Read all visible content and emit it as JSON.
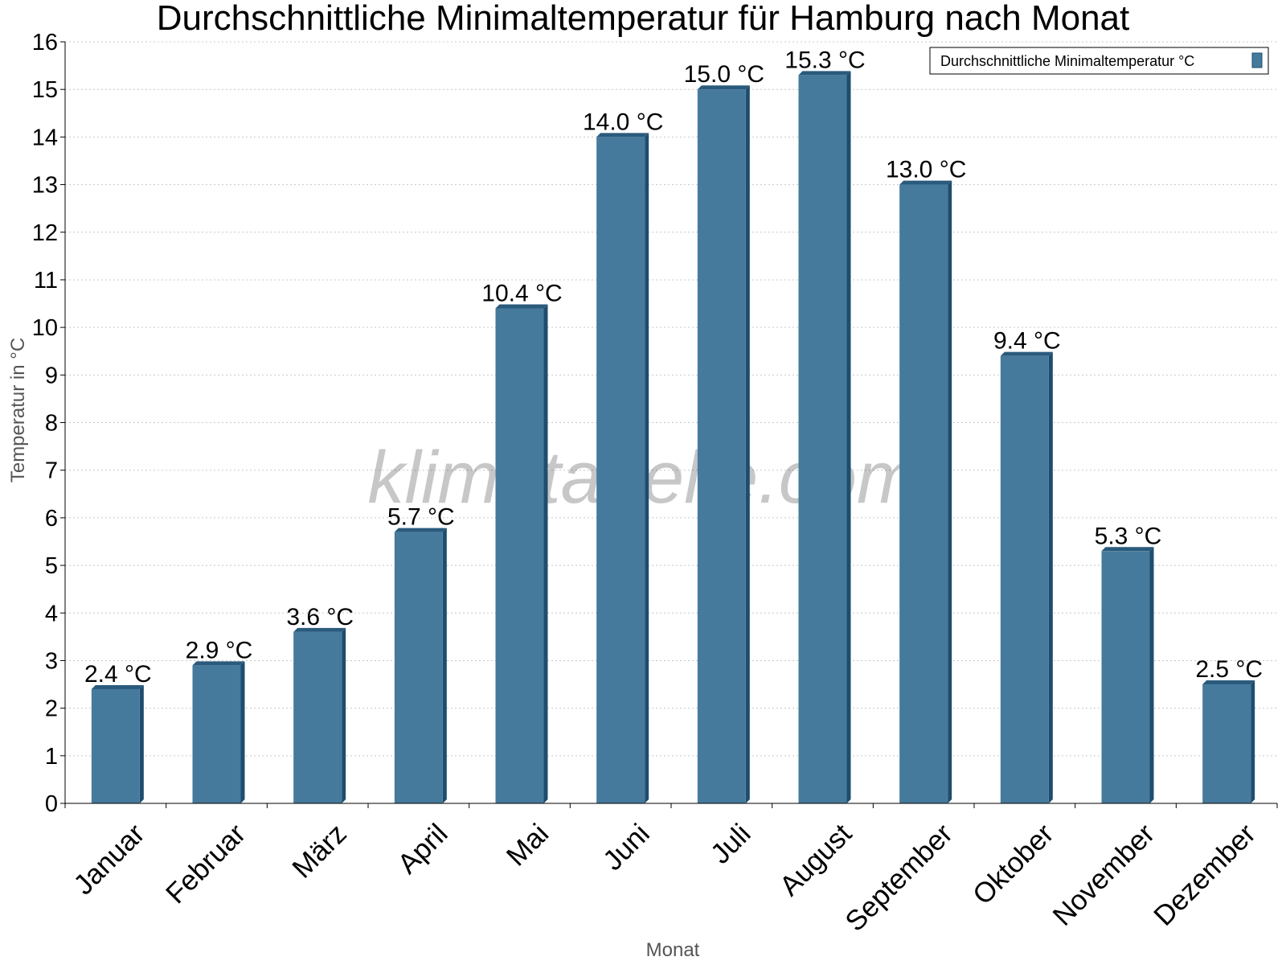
{
  "chart_data": {
    "type": "bar",
    "title": "Durchschnittliche Minimaltemperatur für Hamburg nach Monat",
    "xlabel": "Monat",
    "ylabel": "Temperatur in °C",
    "categories": [
      "Januar",
      "Februar",
      "März",
      "April",
      "Mai",
      "Juni",
      "Juli",
      "August",
      "September",
      "Oktober",
      "November",
      "Dezember"
    ],
    "series": [
      {
        "name": "Durchschnittliche Minimaltemperatur °C",
        "values": [
          2.4,
          2.9,
          3.6,
          5.7,
          10.4,
          14.0,
          15.0,
          15.3,
          13.0,
          9.4,
          5.3,
          2.5
        ],
        "labels": [
          "2.4 °C",
          "2.9 °C",
          "3.6 °C",
          "5.7 °C",
          "10.4 °C",
          "14.0 °C",
          "15.0 °C",
          "15.3 °C",
          "13.0 °C",
          "9.4 °C",
          "5.3 °C",
          "2.5 °C"
        ]
      }
    ],
    "ylim": [
      0,
      16
    ],
    "yticks": [
      "0",
      "1",
      "2",
      "3",
      "4",
      "5",
      "6",
      "7",
      "8",
      "9",
      "10",
      "11",
      "12",
      "13",
      "14",
      "15",
      "16"
    ],
    "grid": true,
    "legend_position": "top-right",
    "watermark": "klimatabelle.com",
    "colors": {
      "bar_fill": "#467a9c",
      "bar_shade": "#1e4d6e",
      "bar_top": "#2a5a7c"
    }
  }
}
